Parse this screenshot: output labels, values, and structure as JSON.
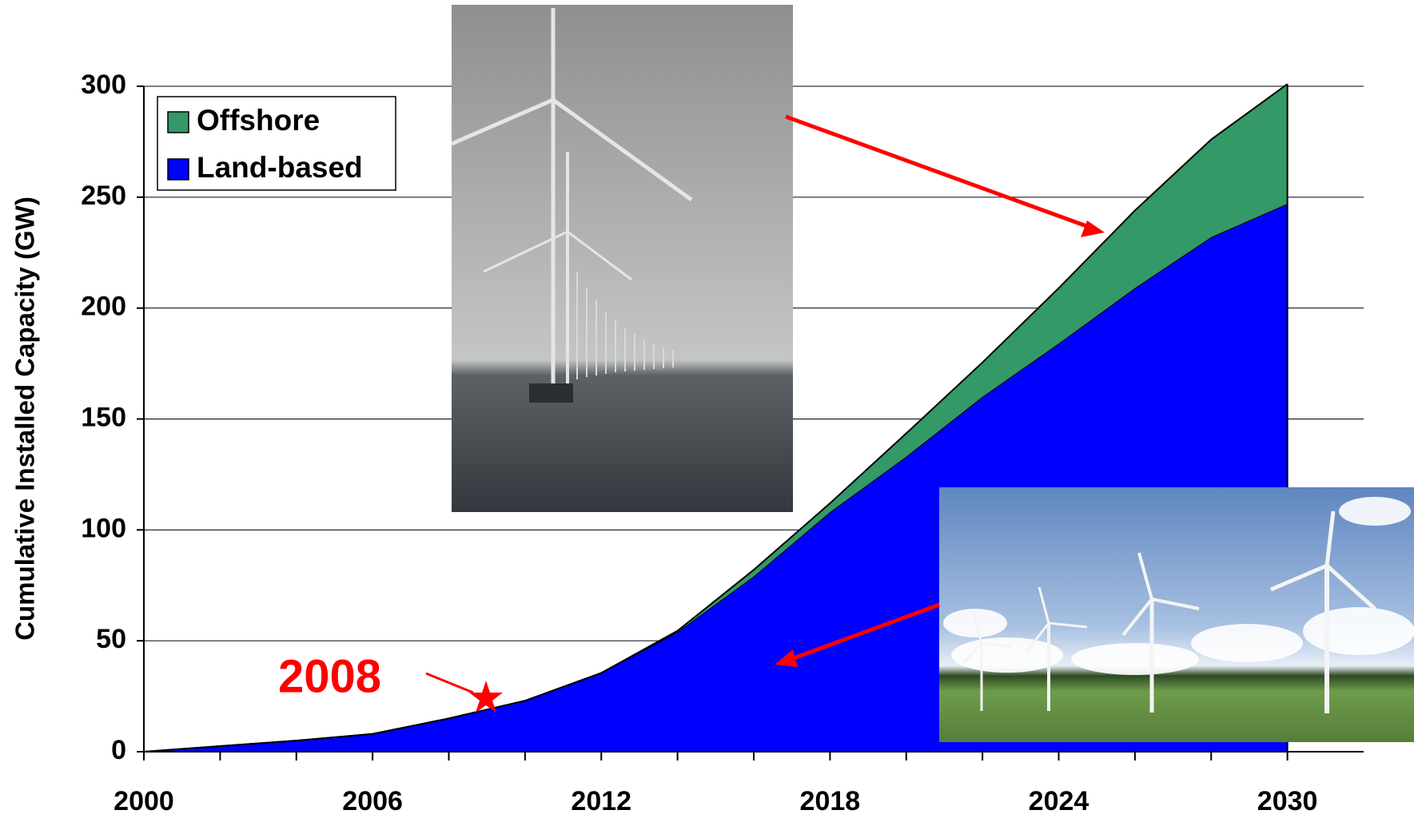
{
  "chart_data": {
    "type": "stacked_area",
    "ylabel": "Cumulative Installed Capacity (GW)",
    "x": [
      2000,
      2002,
      2004,
      2006,
      2008,
      2010,
      2012,
      2014,
      2016,
      2018,
      2020,
      2022,
      2024,
      2026,
      2028,
      2030
    ],
    "series": [
      {
        "name": "Land-based",
        "color": "#0000ff",
        "values": [
          0,
          2.5,
          5,
          8,
          15,
          23,
          35.5,
          54,
          79,
          108,
          133,
          160,
          184,
          209,
          232,
          247
        ]
      },
      {
        "name": "Offshore",
        "color": "#339966",
        "values": [
          0,
          0,
          0,
          0,
          0,
          0,
          0,
          0.5,
          3,
          4,
          10.5,
          15.5,
          25,
          35,
          44,
          54
        ]
      }
    ],
    "xlim": [
      2000,
      2032
    ],
    "xticks": [
      2000,
      2006,
      2012,
      2018,
      2024,
      2030
    ],
    "minor_xticks": [
      2002,
      2004,
      2008,
      2010,
      2014,
      2016,
      2020,
      2022,
      2026,
      2028
    ],
    "ylim": [
      0,
      300
    ],
    "yticks": [
      0,
      50,
      100,
      150,
      200,
      250,
      300
    ],
    "grid": true,
    "legend": "upper left",
    "annotation": "2008"
  }
}
